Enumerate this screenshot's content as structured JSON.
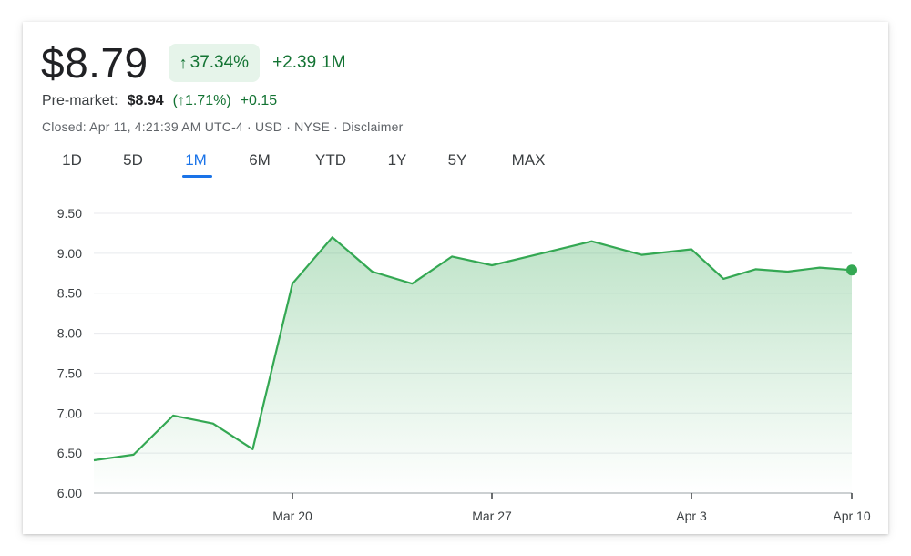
{
  "header": {
    "price": "$8.79",
    "change_pct": "37.34%",
    "change_abs": "+2.39",
    "change_period": "1M",
    "arrow_icon": "arrow-up-icon"
  },
  "premarket": {
    "label": "Pre-market:",
    "price": "$8.94",
    "pct": "1.71%",
    "change": "+0.15"
  },
  "status_line": "Closed: Apr 11, 4:21:39 AM UTC-4 · USD · NYSE · Disclaimer",
  "tabs": [
    {
      "label": "1D",
      "active": false
    },
    {
      "label": "5D",
      "active": false
    },
    {
      "label": "1M",
      "active": true
    },
    {
      "label": "6M",
      "active": false
    },
    {
      "label": "YTD",
      "active": false
    },
    {
      "label": "1Y",
      "active": false
    },
    {
      "label": "5Y",
      "active": false
    },
    {
      "label": "MAX",
      "active": false
    }
  ],
  "colors": {
    "positive": "#137333",
    "line": "#34a853",
    "accent": "#1a73e8"
  },
  "chart_data": {
    "type": "area",
    "title": "",
    "xlabel": "",
    "ylabel": "",
    "ylim": [
      6.0,
      9.5
    ],
    "y_ticks": [
      "9.50",
      "9.00",
      "8.50",
      "8.00",
      "7.50",
      "7.00",
      "6.50",
      "6.00"
    ],
    "x_tick_labels": [
      "Mar 20",
      "Mar 27",
      "Apr 3",
      "Apr 10"
    ],
    "x_tick_dates": [
      "2024-03-20",
      "2024-03-27",
      "2024-04-03",
      "2024-04-10"
    ],
    "grid": true,
    "series": [
      {
        "x": [
          "2024-03-13",
          "2024-03-14",
          "2024-03-15",
          "2024-03-18",
          "2024-03-19",
          "2024-03-20",
          "2024-03-21",
          "2024-03-22",
          "2024-03-25",
          "2024-03-26",
          "2024-03-27",
          "2024-03-28",
          "2024-04-01",
          "2024-04-02",
          "2024-04-03",
          "2024-04-04",
          "2024-04-05",
          "2024-04-08",
          "2024-04-09",
          "2024-04-10"
        ],
        "values": [
          6.41,
          6.48,
          6.97,
          6.87,
          6.55,
          8.62,
          9.2,
          8.77,
          8.62,
          8.96,
          8.85,
          9.0,
          9.15,
          8.98,
          9.05,
          8.68,
          8.8,
          8.77,
          8.82,
          8.79
        ]
      }
    ]
  }
}
